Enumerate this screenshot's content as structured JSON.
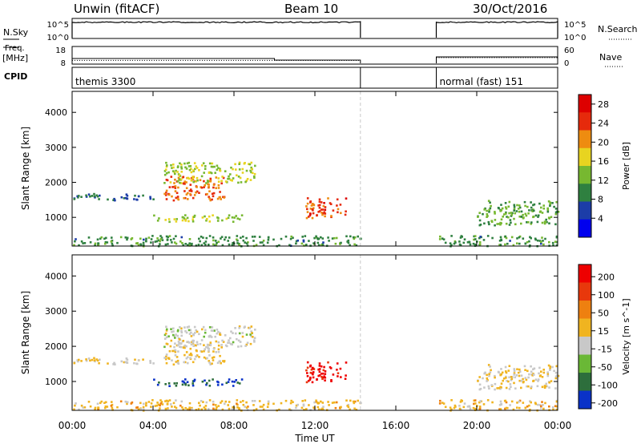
{
  "header": {
    "radar_title": "Unwin (fitACF)",
    "beam": "Beam 10",
    "date": "30/Oct/2016"
  },
  "summary_panels": {
    "nsky": {
      "label": "N.Sky",
      "ticks": [
        "10^5",
        "10^0"
      ]
    },
    "nsearch": {
      "label": "N.Search",
      "ticks": [
        "10^5",
        "10^0"
      ]
    },
    "freq": {
      "label_line1": "Freq.",
      "label_line2": "[MHz]",
      "ticks": [
        "18",
        "8"
      ]
    },
    "nave": {
      "label": "Nave",
      "ticks": [
        "60",
        "0"
      ]
    },
    "cpid": {
      "label": "CPID",
      "segments": [
        {
          "name": "themis 3300",
          "start_h": 0.0,
          "end_h": 14.25
        },
        {
          "name": "normal (fast) 151",
          "start_h": 18.0,
          "end_h": 24.0
        }
      ]
    },
    "data_gap_h": [
      14.25,
      18.0
    ],
    "freq_step": {
      "before_mhz": 11,
      "after_mhz": 10,
      "change_h": 10.0
    },
    "freq_second_segment_mhz": 12,
    "nave_first_segment": 11,
    "nave_second_segment": 21
  },
  "axes": {
    "x_tick_labels": [
      "00:00",
      "04:00",
      "08:00",
      "12:00",
      "16:00",
      "20:00",
      "00:00"
    ],
    "xlabel": "Time UT",
    "xlim_hours": [
      0,
      24
    ],
    "ylabel": "Slant Range [km]",
    "y_tick_labels": [
      "1000",
      "2000",
      "3000",
      "4000"
    ],
    "ylim_km": [
      180,
      4600
    ]
  },
  "chart_data": [
    {
      "type": "heatmap",
      "panel": "power",
      "colorbar_label": "Power [dB]",
      "colorbar_ticks": [
        "4",
        "8",
        "12",
        "16",
        "20",
        "24",
        "28"
      ],
      "color_range": [
        0,
        30
      ],
      "colors": [
        "#0000ee",
        "#1c3da8",
        "#2f8040",
        "#77b830",
        "#e8d420",
        "#ee8c10",
        "#e62a0c",
        "#dd0000"
      ],
      "regions": [
        {
          "name": "band_east_lower",
          "t": [
            0.0,
            4.0
          ],
          "r": [
            1500,
            1700
          ],
          "value": 8
        },
        {
          "name": "core_blob",
          "t": [
            4.5,
            7.5
          ],
          "r": [
            1500,
            2200
          ],
          "value": 22
        },
        {
          "name": "ring_arc",
          "t": [
            4.5,
            9.0
          ],
          "r": [
            2000,
            2600
          ],
          "value": 15
        },
        {
          "name": "low_echoes_morning",
          "t": [
            4.0,
            8.5
          ],
          "r": [
            900,
            1100
          ],
          "value": 14
        },
        {
          "name": "burst_noon",
          "t": [
            11.5,
            13.5
          ],
          "r": [
            1000,
            1600
          ],
          "value": 24
        },
        {
          "name": "evening_band",
          "t": [
            20.0,
            24.0
          ],
          "r": [
            800,
            1500
          ],
          "value": 12
        },
        {
          "name": "near_range",
          "t": [
            0.0,
            14.25
          ],
          "r": [
            200,
            500
          ],
          "value": 10
        },
        {
          "name": "near_range_late",
          "t": [
            18.0,
            24.0
          ],
          "r": [
            200,
            500
          ],
          "value": 10
        }
      ]
    },
    {
      "type": "heatmap",
      "panel": "velocity",
      "colorbar_label": "Velocity [m s^-1]",
      "colorbar_ticks": [
        "200",
        "100",
        "50",
        "15",
        "-15",
        "-50",
        "-100",
        "-200"
      ],
      "color_range": [
        -250,
        250
      ],
      "colors": [
        "#0a32c8",
        "#2d6e3c",
        "#6ab836",
        "#c8c8c8",
        "#f0b420",
        "#ee8010",
        "#e8380c",
        "#ee0000"
      ],
      "regions": [
        {
          "name": "band_east_lower",
          "t": [
            0.0,
            4.0
          ],
          "r": [
            1500,
            1700
          ],
          "value": 0
        },
        {
          "name": "core_blob",
          "t": [
            4.5,
            7.5
          ],
          "r": [
            1500,
            2200
          ],
          "value": 0
        },
        {
          "name": "ring_arc",
          "t": [
            4.5,
            9.0
          ],
          "r": [
            2000,
            2600
          ],
          "value": -30
        },
        {
          "name": "low_echoes_morning",
          "t": [
            4.0,
            8.5
          ],
          "r": [
            900,
            1100
          ],
          "value": -200
        },
        {
          "name": "burst_noon",
          "t": [
            11.5,
            13.5
          ],
          "r": [
            1000,
            1600
          ],
          "value": 220
        },
        {
          "name": "evening_band",
          "t": [
            20.0,
            24.0
          ],
          "r": [
            800,
            1500
          ],
          "value": 0
        },
        {
          "name": "near_range",
          "t": [
            0.0,
            14.25
          ],
          "r": [
            200,
            500
          ],
          "value": 30
        },
        {
          "name": "near_range_late",
          "t": [
            18.0,
            24.0
          ],
          "r": [
            200,
            500
          ],
          "value": 30
        }
      ]
    }
  ]
}
